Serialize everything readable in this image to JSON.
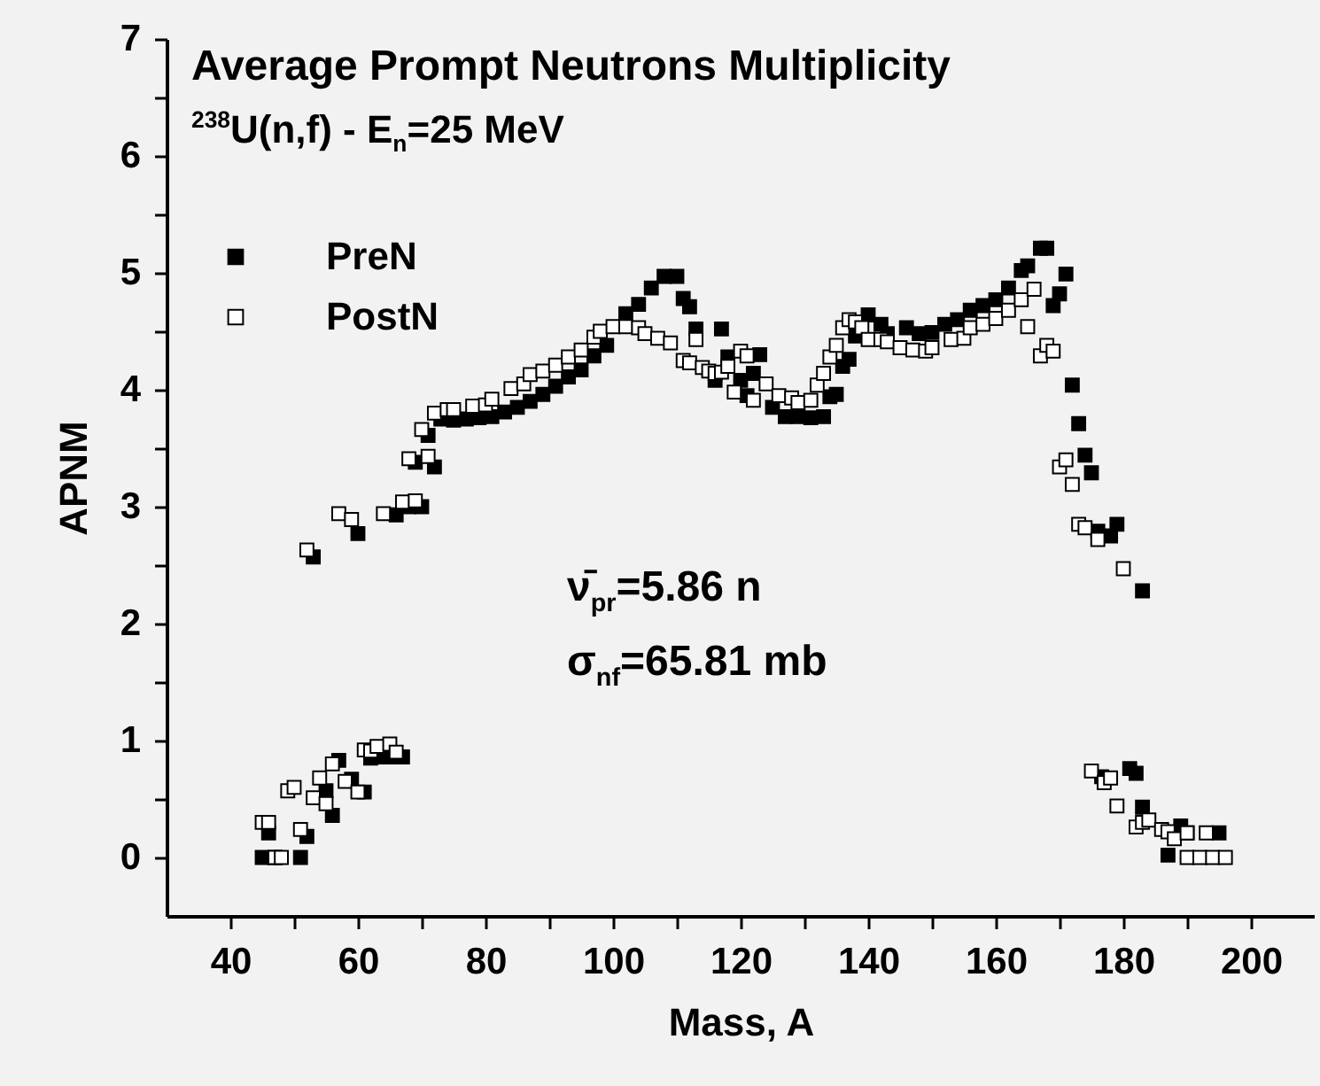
{
  "chart_data": {
    "type": "scatter",
    "title": "Average Prompt Neutrons Multiplicity",
    "subtitle": "$^{238}$U(n,f) - E$_{n}$=25 MeV",
    "xlabel": "Mass, A",
    "ylabel": "APNM",
    "annotations": [
      "ν̄$_{pr}$=5.86 n",
      "σ$_{nf}$=65.81 mb"
    ],
    "xlim": [
      30,
      210
    ],
    "ylim": [
      -0.5,
      7
    ],
    "xticks": [
      40,
      {
        "value": 50,
        "label": null
      },
      60,
      {
        "value": 70,
        "label": null
      },
      80,
      {
        "value": 90,
        "label": null
      },
      100,
      {
        "value": 110,
        "label": null
      },
      120,
      {
        "value": 130,
        "label": null
      },
      140,
      {
        "value": 150,
        "label": null
      },
      160,
      {
        "value": 170,
        "label": null
      },
      180,
      {
        "value": 190,
        "label": null
      },
      200
    ],
    "yticks": [
      0,
      {
        "value": 0.5,
        "label": null
      },
      1,
      {
        "value": 1.5,
        "label": null
      },
      2,
      {
        "value": 2.5,
        "label": null
      },
      3,
      {
        "value": 3.5,
        "label": null
      },
      4,
      {
        "value": 4.5,
        "label": null
      },
      5,
      {
        "value": 5.5,
        "label": null
      },
      6,
      {
        "value": 6.5,
        "label": null
      },
      7
    ],
    "grid": false,
    "legend": "top left",
    "marker": "square",
    "series": [
      {
        "name": "PreN",
        "color": "#000000",
        "x": [
          45,
          47,
          51,
          46,
          52,
          56,
          55,
          57,
          59,
          61,
          62,
          63,
          65,
          67,
          53,
          60,
          66,
          68,
          70,
          69,
          72,
          71,
          73,
          75,
          77,
          79,
          81,
          83,
          85,
          87,
          89,
          91,
          93,
          95,
          97,
          99,
          102,
          104,
          106,
          108,
          110,
          111,
          112,
          113,
          116,
          117,
          118,
          120,
          121,
          122,
          123,
          125,
          127,
          129,
          131,
          133,
          134,
          135,
          136,
          137,
          138,
          140,
          142,
          143,
          146,
          148,
          150,
          152,
          154,
          156,
          158,
          160,
          162,
          164,
          165,
          167,
          168,
          169,
          170,
          171,
          172,
          173,
          174,
          175,
          176,
          178,
          179,
          183,
          176.6,
          181,
          182,
          183,
          187,
          189,
          190,
          195
        ],
        "values": [
          0,
          0,
          0,
          0.21,
          0.18,
          0.36,
          0.57,
          0.83,
          0.67,
          0.56,
          0.85,
          0.86,
          0.86,
          0.86,
          2.57,
          2.77,
          2.93,
          3.0,
          3.0,
          3.38,
          3.34,
          3.61,
          3.75,
          3.74,
          3.75,
          3.76,
          3.77,
          3.81,
          3.85,
          3.9,
          3.96,
          4.03,
          4.11,
          4.17,
          4.29,
          4.38,
          4.65,
          4.73,
          4.87,
          4.97,
          4.97,
          4.78,
          4.71,
          4.52,
          4.08,
          4.52,
          4.28,
          4.08,
          3.95,
          4.14,
          4.3,
          3.85,
          3.77,
          3.77,
          3.76,
          3.77,
          3.94,
          3.96,
          4.2,
          4.26,
          4.46,
          4.64,
          4.56,
          4.48,
          4.53,
          4.48,
          4.49,
          4.56,
          4.6,
          4.68,
          4.72,
          4.77,
          4.87,
          5.02,
          5.06,
          5.21,
          5.21,
          4.72,
          4.82,
          4.99,
          4.04,
          3.71,
          3.44,
          3.29,
          2.79,
          2.75,
          2.85,
          2.28,
          0.69,
          0.76,
          0.72,
          0.43,
          0.02,
          0.27,
          0.21,
          0.21
        ]
      },
      {
        "name": "PostN",
        "color": "#ffffff",
        "x": [
          45,
          46,
          47,
          48,
          49,
          50,
          51,
          53,
          54,
          55,
          56,
          58,
          60,
          61,
          62,
          63,
          65,
          66,
          52,
          57,
          59,
          64,
          67,
          69,
          68,
          71,
          70,
          72,
          74,
          75,
          78,
          80,
          81,
          84,
          86,
          87,
          89,
          91,
          93,
          95,
          97,
          98,
          100,
          102,
          104,
          105,
          107,
          109,
          111,
          113,
          112,
          114,
          115,
          116,
          117,
          118,
          119,
          120,
          121,
          122,
          124,
          126,
          128,
          129,
          131,
          132,
          133,
          134,
          135,
          136,
          137,
          138,
          139,
          140,
          142,
          143,
          145,
          147,
          149,
          150,
          153,
          155,
          156,
          158,
          160,
          162,
          164,
          166,
          165,
          167,
          168,
          169,
          170,
          171,
          172,
          173,
          174,
          176,
          180,
          175,
          177,
          178,
          179,
          182,
          183,
          184,
          186,
          187,
          188,
          190,
          193,
          190,
          192,
          194,
          196
        ],
        "values": [
          0.3,
          0.3,
          0,
          0,
          0.57,
          0.6,
          0.24,
          0.51,
          0.68,
          0.46,
          0.8,
          0.65,
          0.56,
          0.92,
          0.91,
          0.95,
          0.97,
          0.9,
          2.63,
          2.94,
          2.89,
          2.94,
          3.04,
          3.05,
          3.41,
          3.43,
          3.66,
          3.8,
          3.83,
          3.83,
          3.86,
          3.87,
          3.92,
          4.01,
          4.05,
          4.13,
          4.16,
          4.21,
          4.28,
          4.34,
          4.45,
          4.5,
          4.54,
          4.54,
          4.53,
          4.48,
          4.44,
          4.4,
          4.25,
          4.43,
          4.23,
          4.19,
          4.16,
          4.14,
          4.15,
          4.2,
          3.98,
          4.33,
          4.29,
          3.91,
          4.05,
          3.95,
          3.93,
          3.89,
          3.91,
          4.04,
          4.14,
          4.28,
          4.38,
          4.53,
          4.6,
          4.58,
          4.53,
          4.43,
          4.43,
          4.41,
          4.36,
          4.34,
          4.33,
          4.36,
          4.43,
          4.44,
          4.53,
          4.56,
          4.61,
          4.68,
          4.77,
          4.86,
          4.54,
          4.29,
          4.38,
          4.33,
          3.34,
          3.4,
          3.19,
          2.85,
          2.82,
          2.72,
          2.47,
          0.74,
          0.64,
          0.68,
          0.44,
          0.26,
          0.3,
          0.32,
          0.24,
          0.22,
          0.16,
          0.21,
          0.21,
          0,
          0,
          0,
          0
        ]
      }
    ]
  }
}
